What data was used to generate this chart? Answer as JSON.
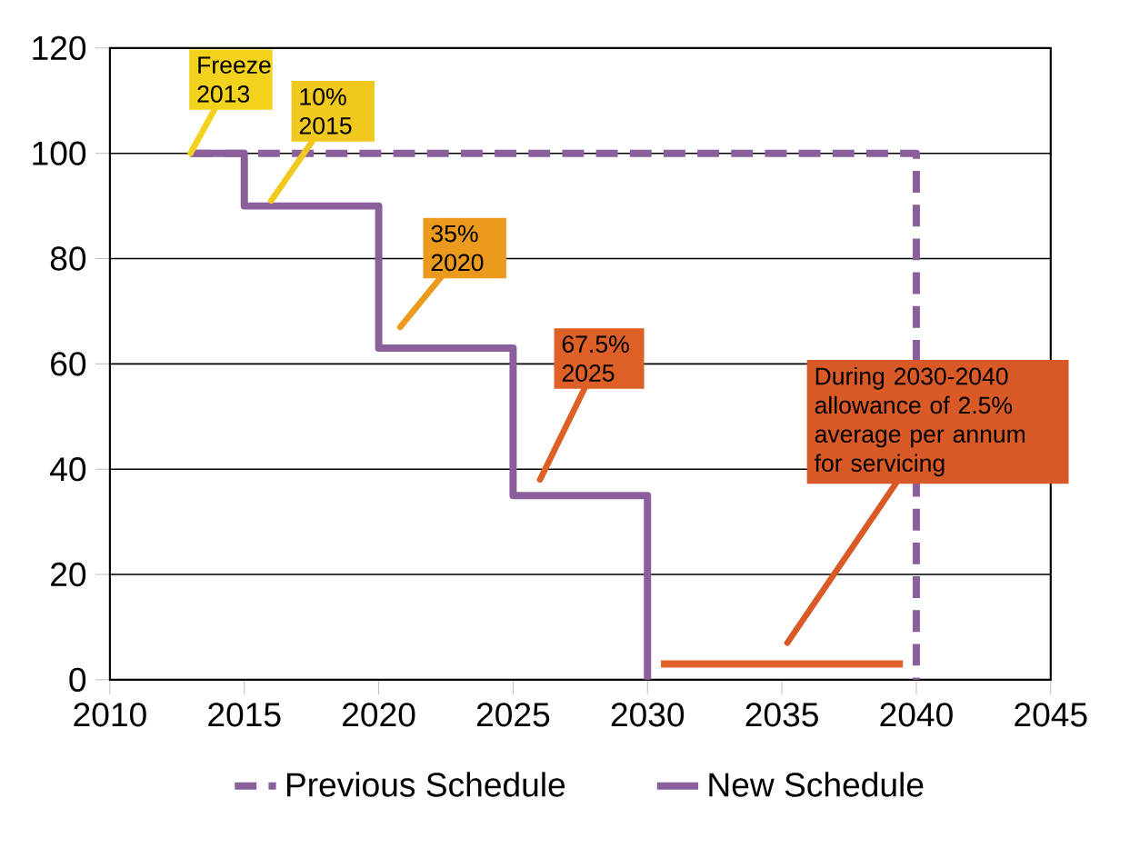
{
  "chart_data": {
    "type": "step",
    "xlim": [
      2010,
      2045
    ],
    "xticks": [
      2010,
      2015,
      2020,
      2025,
      2030,
      2035,
      2040,
      2045
    ],
    "ylim": [
      0,
      120
    ],
    "yticks": [
      0,
      20,
      40,
      60,
      80,
      100,
      120
    ],
    "grid": "y",
    "legend": "bottom",
    "series": [
      {
        "name": "Previous Schedule",
        "color": "#8a5f9c",
        "line_style": "dashed",
        "x": [
          2013,
          2040
        ],
        "values": [
          100,
          0
        ]
      },
      {
        "name": "New Schedule",
        "color": "#8a5f9c",
        "line_style": "solid",
        "x": [
          2013,
          2015,
          2020,
          2025,
          2030
        ],
        "values": [
          100,
          90,
          63,
          35,
          0
        ]
      },
      {
        "type": "line",
        "color": "#e0622a",
        "line_style": "solid",
        "x": [
          2030.5,
          2039.5
        ],
        "values": [
          3,
          3
        ]
      }
    ],
    "annotations": [
      {
        "text": "Freeze 2013",
        "x": 2013,
        "y": 100
      },
      {
        "text": "10% 2015",
        "x": 2016,
        "y": 91
      },
      "35% 2020",
      "67.5% 2025",
      "During 2030-2040 allowance of 2.5% average per annum for servicing"
    ]
  }
}
